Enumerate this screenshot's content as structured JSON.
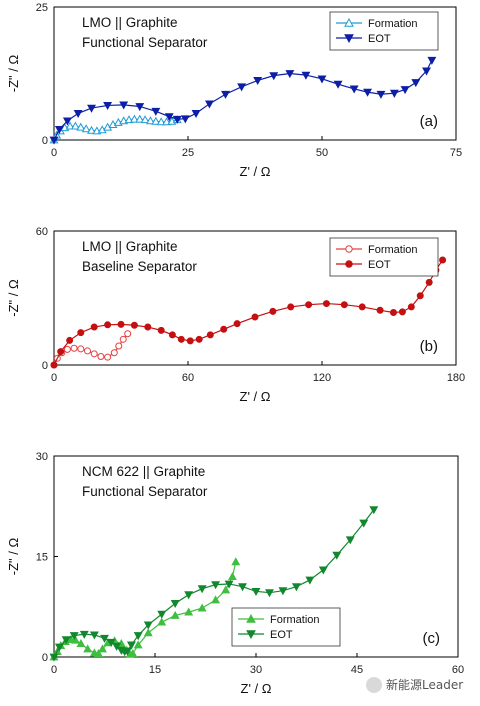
{
  "chart_data": [
    {
      "type": "line",
      "panel_label": "(a)",
      "title_lines": [
        "LMO || Graphite",
        "Functional Separator"
      ],
      "xlabel": "Z' / Ω",
      "ylabel": "-Z\" / Ω",
      "xlim": [
        0,
        75
      ],
      "ylim": [
        0,
        25
      ],
      "xticks": [
        0,
        25,
        50,
        75
      ],
      "yticks": [
        0,
        25
      ],
      "xtick_labels": [
        "0",
        "25",
        "50",
        "75"
      ],
      "ytick_labels": [
        "0",
        "25"
      ],
      "legend_position": "top-right",
      "series": [
        {
          "name": "Formation",
          "color": "#1f9bd6",
          "marker": "triangle-up",
          "fill": "open",
          "x": [
            0.0,
            0.5,
            1.2,
            2.0,
            3.0,
            4.0,
            5.0,
            6.0,
            7.0,
            8.0,
            9.0,
            10.0,
            11.0,
            12.0,
            13.0,
            14.0,
            15.0,
            16.0,
            17.0,
            18.0,
            19.0,
            20.0,
            21.0,
            22.0,
            23.0
          ],
          "y": [
            0.0,
            0.9,
            1.7,
            2.3,
            2.6,
            2.6,
            2.4,
            2.1,
            1.8,
            1.7,
            1.9,
            2.4,
            2.9,
            3.3,
            3.6,
            3.8,
            3.9,
            3.9,
            3.8,
            3.6,
            3.5,
            3.4,
            3.4,
            3.5,
            3.8
          ]
        },
        {
          "name": "EOT",
          "color": "#0d1fa6",
          "marker": "triangle-down",
          "fill": "solid",
          "x": [
            0.0,
            1.0,
            2.5,
            4.5,
            7.0,
            10.0,
            13.0,
            16.0,
            19.0,
            21.5,
            23.0,
            24.5,
            26.5,
            29.0,
            32.0,
            35.0,
            38.0,
            41.0,
            44.0,
            47.0,
            50.0,
            53.0,
            56.0,
            58.5,
            61.0,
            63.5,
            65.5,
            67.5,
            69.5,
            70.5
          ],
          "y": [
            0.0,
            2.0,
            3.6,
            5.0,
            6.0,
            6.5,
            6.6,
            6.3,
            5.4,
            4.4,
            3.9,
            4.0,
            5.0,
            6.8,
            8.6,
            10.0,
            11.2,
            12.1,
            12.5,
            12.2,
            11.5,
            10.5,
            9.6,
            9.0,
            8.6,
            8.8,
            9.5,
            10.8,
            13.0,
            15.0
          ]
        }
      ]
    },
    {
      "type": "line",
      "panel_label": "(b)",
      "title_lines": [
        "LMO || Graphite",
        "Baseline Separator"
      ],
      "xlabel": "Z' / Ω",
      "ylabel": "-Z\" / Ω",
      "xlim": [
        0,
        180
      ],
      "ylim": [
        0,
        60
      ],
      "xticks": [
        0,
        60,
        120,
        180
      ],
      "yticks": [
        0,
        60
      ],
      "xtick_labels": [
        "0",
        "60",
        "120",
        "180"
      ],
      "ytick_labels": [
        "0",
        "60"
      ],
      "legend_position": "top-right",
      "series": [
        {
          "name": "Formation",
          "color": "#e34040",
          "marker": "circle",
          "fill": "open",
          "x": [
            0.0,
            1.5,
            3.5,
            6.0,
            9.0,
            12.0,
            15.0,
            18.0,
            21.0,
            24.0,
            27.0,
            29.0,
            31.0,
            33.0
          ],
          "y": [
            0.0,
            3.0,
            5.5,
            7.0,
            7.5,
            7.2,
            6.3,
            5.0,
            3.8,
            3.5,
            5.5,
            8.5,
            11.5,
            14.0
          ]
        },
        {
          "name": "EOT",
          "color": "#c41010",
          "marker": "circle",
          "fill": "solid",
          "x": [
            0.0,
            3.0,
            7.0,
            12.0,
            18.0,
            24.0,
            30.0,
            36.0,
            42.0,
            48.0,
            53.0,
            57.0,
            61.0,
            65.0,
            70.0,
            76.0,
            82.0,
            90.0,
            98.0,
            106.0,
            114.0,
            122.0,
            130.0,
            138.0,
            146.0,
            152.0,
            156.0,
            160.0,
            164.0,
            168.0,
            171.0,
            174.0
          ],
          "y": [
            0.0,
            6.0,
            11.0,
            14.5,
            17.0,
            18.0,
            18.2,
            17.8,
            17.0,
            15.5,
            13.5,
            11.5,
            10.8,
            11.5,
            13.5,
            16.0,
            18.5,
            21.5,
            24.0,
            26.0,
            27.0,
            27.5,
            27.0,
            26.0,
            24.5,
            23.5,
            23.8,
            26.0,
            31.0,
            37.0,
            42.5,
            47.0
          ]
        }
      ]
    },
    {
      "type": "line",
      "panel_label": "(c)",
      "title_lines": [
        "NCM 622 || Graphite",
        "Functional Separator"
      ],
      "xlabel": "Z' / Ω",
      "ylabel": "-Z\" / Ω",
      "xlim": [
        0,
        60
      ],
      "ylim": [
        0,
        30
      ],
      "xticks": [
        0,
        15,
        30,
        45,
        60
      ],
      "yticks": [
        0,
        15,
        30
      ],
      "xtick_labels": [
        "0",
        "15",
        "30",
        "45",
        "60"
      ],
      "ytick_labels": [
        "0",
        "15",
        "30"
      ],
      "legend_position": "bottom-center",
      "series": [
        {
          "name": "Formation",
          "color": "#3fbe3f",
          "marker": "triangle-up",
          "fill": "solid",
          "x": [
            0.0,
            0.5,
            1.0,
            1.7,
            2.5,
            3.2,
            4.0,
            5.0,
            6.0,
            6.6,
            7.2,
            8.0,
            9.0,
            10.0,
            10.8,
            11.3,
            11.7,
            12.5,
            14.0,
            16.0,
            18.0,
            20.0,
            22.0,
            24.0,
            25.5,
            26.5,
            27.0
          ],
          "y": [
            0.0,
            0.8,
            1.7,
            2.3,
            2.6,
            2.5,
            2.0,
            1.2,
            0.6,
            0.5,
            1.2,
            2.1,
            2.4,
            2.0,
            1.0,
            0.4,
            0.5,
            1.8,
            3.6,
            5.2,
            6.2,
            6.7,
            7.3,
            8.5,
            10.0,
            12.0,
            14.2
          ]
        },
        {
          "name": "EOT",
          "color": "#12882e",
          "marker": "triangle-down",
          "fill": "solid",
          "x": [
            0.0,
            0.8,
            1.8,
            3.0,
            4.5,
            6.0,
            7.5,
            8.5,
            9.3,
            10.0,
            10.5,
            10.9,
            11.5,
            12.5,
            14.0,
            16.0,
            18.0,
            20.0,
            22.0,
            24.0,
            26.0,
            28.0,
            30.0,
            32.0,
            34.0,
            36.0,
            38.0,
            40.0,
            42.0,
            44.0,
            46.0,
            47.5
          ],
          "y": [
            0.0,
            1.5,
            2.6,
            3.2,
            3.4,
            3.3,
            2.8,
            2.2,
            1.6,
            1.0,
            0.8,
            0.9,
            1.8,
            3.2,
            4.8,
            6.4,
            8.0,
            9.3,
            10.2,
            10.8,
            10.9,
            10.5,
            9.8,
            9.6,
            9.9,
            10.5,
            11.5,
            13.0,
            15.2,
            17.5,
            20.0,
            22.0
          ]
        }
      ]
    }
  ],
  "watermark": {
    "text": "新能源Leader"
  }
}
